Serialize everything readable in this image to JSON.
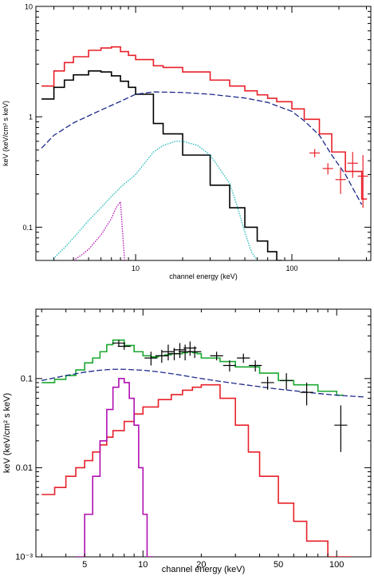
{
  "chart_data": [
    {
      "type": "line",
      "xlabel": "channel energy (keV)",
      "ylabel": "keV (keV/cm² s keV)",
      "x_scale": "log",
      "y_scale": "log",
      "xlim": [
        2.3,
        320
      ],
      "ylim": [
        0.05,
        10
      ],
      "x_ticks": [
        {
          "value": 10,
          "label": "10"
        },
        {
          "value": 100,
          "label": "100"
        }
      ],
      "y_ticks": [
        {
          "value": 0.1,
          "label": "0.1"
        },
        {
          "value": 1,
          "label": "1"
        },
        {
          "value": 10,
          "label": "10"
        }
      ],
      "series": [
        {
          "color": "#e8202a",
          "style": "step",
          "x": [
            2.5,
            3,
            3.5,
            4,
            5,
            6,
            7,
            8,
            9,
            10,
            13,
            15,
            20,
            30,
            40,
            50,
            60,
            70,
            80,
            100,
            120,
            150,
            180,
            220,
            280
          ],
          "y": [
            1.9,
            2.6,
            3.1,
            3.5,
            4.0,
            4.2,
            4.3,
            3.9,
            3.6,
            3.3,
            2.9,
            2.8,
            2.55,
            2.15,
            1.9,
            1.72,
            1.58,
            1.47,
            1.37,
            1.18,
            0.95,
            0.7,
            0.48,
            0.32,
            0.18
          ]
        },
        {
          "color": "#000000",
          "style": "step",
          "x": [
            2.5,
            3,
            3.5,
            4,
            5,
            6,
            7,
            8,
            9,
            10,
            13,
            15,
            20,
            30,
            40,
            50,
            60,
            70,
            80
          ],
          "y": [
            1.45,
            1.85,
            2.15,
            2.4,
            2.6,
            2.55,
            2.35,
            2.1,
            1.85,
            1.6,
            0.87,
            0.7,
            0.45,
            0.24,
            0.15,
            0.1,
            0.075,
            0.06,
            0.05
          ]
        },
        {
          "color": "#1c2a8a",
          "style": "dashed",
          "x": [
            2.5,
            3,
            4,
            5,
            6,
            8,
            10,
            13,
            20,
            30,
            50,
            70,
            100,
            120,
            150,
            180,
            220,
            280
          ],
          "y": [
            0.52,
            0.68,
            0.88,
            1.02,
            1.15,
            1.38,
            1.6,
            1.68,
            1.66,
            1.6,
            1.48,
            1.35,
            1.12,
            0.92,
            0.68,
            0.45,
            0.3,
            0.16
          ]
        },
        {
          "color": "#20b8b8",
          "style": "dotted",
          "x": [
            2.9,
            3.5,
            4,
            5,
            6,
            7,
            8,
            10,
            13,
            15,
            18,
            20,
            25,
            30,
            40,
            45,
            50,
            55,
            60
          ],
          "y": [
            0.05,
            0.065,
            0.08,
            0.115,
            0.15,
            0.19,
            0.23,
            0.3,
            0.48,
            0.55,
            0.6,
            0.6,
            0.55,
            0.45,
            0.25,
            0.15,
            0.09,
            0.06,
            0.05
          ]
        },
        {
          "color": "#b010b0",
          "style": "dotted",
          "x": [
            4,
            4.5,
            5,
            6,
            7,
            7.5,
            8,
            8.3,
            8.5
          ],
          "y": [
            0.05,
            0.056,
            0.063,
            0.085,
            0.12,
            0.15,
            0.17,
            0.08,
            0.05
          ]
        }
      ],
      "error_points": {
        "color": "#e8202a",
        "x": [
          140,
          170,
          205,
          245,
          285
        ],
        "y": [
          0.47,
          0.34,
          0.27,
          0.38,
          0.29
        ],
        "y_low": [
          0.43,
          0.3,
          0.2,
          0.28,
          0.15
        ],
        "y_high": [
          0.51,
          0.38,
          0.34,
          0.48,
          0.45
        ]
      }
    },
    {
      "type": "line",
      "xlabel": "channel energy (keV)",
      "ylabel": "keV (keV/cm² s keV)",
      "x_scale": "log",
      "y_scale": "log",
      "xlim": [
        2.8,
        150
      ],
      "ylim": [
        0.001,
        0.6
      ],
      "x_ticks": [
        {
          "value": 5,
          "label": "5"
        },
        {
          "value": 10,
          "label": "10"
        },
        {
          "value": 20,
          "label": "20"
        },
        {
          "value": 50,
          "label": "50"
        },
        {
          "value": 100,
          "label": "100"
        }
      ],
      "y_ticks": [
        {
          "value": 0.001,
          "label": "10⁻³"
        },
        {
          "value": 0.01,
          "label": "0.01"
        },
        {
          "value": 0.1,
          "label": "0.1"
        }
      ],
      "series": [
        {
          "color": "#1aa830",
          "style": "step",
          "x": [
            3,
            3.5,
            4,
            4.5,
            5,
            5.5,
            6,
            6.5,
            7,
            7.5,
            8,
            9,
            10,
            11,
            12,
            13,
            14,
            15,
            16,
            17,
            18,
            19,
            20,
            25,
            30,
            40,
            50,
            60,
            80,
            100
          ],
          "y": [
            0.09,
            0.098,
            0.108,
            0.125,
            0.15,
            0.17,
            0.2,
            0.24,
            0.27,
            0.27,
            0.235,
            0.2,
            0.18,
            0.175,
            0.18,
            0.185,
            0.19,
            0.19,
            0.195,
            0.2,
            0.195,
            0.19,
            0.17,
            0.155,
            0.135,
            0.115,
            0.095,
            0.085,
            0.072,
            0.065
          ]
        },
        {
          "color": "#1c2a8a",
          "style": "dashed",
          "x": [
            3,
            4,
            5,
            6,
            7,
            8,
            10,
            12,
            15,
            20,
            25,
            30,
            40,
            50,
            60,
            80,
            100,
            140
          ],
          "y": [
            0.095,
            0.108,
            0.118,
            0.124,
            0.127,
            0.127,
            0.124,
            0.119,
            0.111,
            0.1,
            0.093,
            0.088,
            0.081,
            0.076,
            0.073,
            0.068,
            0.065,
            0.062
          ]
        },
        {
          "color": "#e8202a",
          "style": "step",
          "x": [
            3,
            3.5,
            4,
            4.5,
            5,
            5.5,
            6,
            6.5,
            7,
            8,
            9,
            10,
            12,
            14,
            16,
            18,
            20,
            25,
            30,
            35,
            40,
            50,
            60,
            70,
            90,
            110
          ],
          "y": [
            0.005,
            0.006,
            0.008,
            0.01,
            0.012,
            0.015,
            0.018,
            0.022,
            0.026,
            0.033,
            0.04,
            0.048,
            0.058,
            0.066,
            0.074,
            0.08,
            0.085,
            0.06,
            0.03,
            0.015,
            0.008,
            0.004,
            0.0025,
            0.0015,
            0.001,
            0.001
          ]
        },
        {
          "color": "#b010b0",
          "style": "step",
          "x": [
            4.5,
            5,
            5.5,
            6,
            6.5,
            7,
            7.5,
            8,
            8.5,
            9,
            9.5,
            10,
            10.5
          ],
          "y": [
            0.001,
            0.003,
            0.008,
            0.02,
            0.045,
            0.08,
            0.1,
            0.09,
            0.06,
            0.03,
            0.01,
            0.003,
            0.001
          ]
        }
      ],
      "error_points": {
        "color": "#000000",
        "x": [
          7.5,
          8,
          11,
          12.5,
          13.5,
          14.5,
          15.5,
          16.5,
          17.5,
          18.5,
          24,
          28,
          33,
          38,
          44,
          55,
          70,
          105
        ],
        "y": [
          0.25,
          0.23,
          0.17,
          0.18,
          0.2,
          0.19,
          0.21,
          0.2,
          0.22,
          0.2,
          0.18,
          0.14,
          0.17,
          0.14,
          0.09,
          0.095,
          0.07,
          0.03
        ],
        "y_low": [
          0.23,
          0.21,
          0.14,
          0.15,
          0.16,
          0.16,
          0.17,
          0.16,
          0.18,
          0.17,
          0.16,
          0.12,
          0.15,
          0.12,
          0.075,
          0.075,
          0.05,
          0.015
        ],
        "y_high": [
          0.27,
          0.25,
          0.2,
          0.21,
          0.24,
          0.22,
          0.25,
          0.24,
          0.26,
          0.23,
          0.2,
          0.16,
          0.19,
          0.16,
          0.105,
          0.115,
          0.09,
          0.05
        ]
      }
    }
  ]
}
